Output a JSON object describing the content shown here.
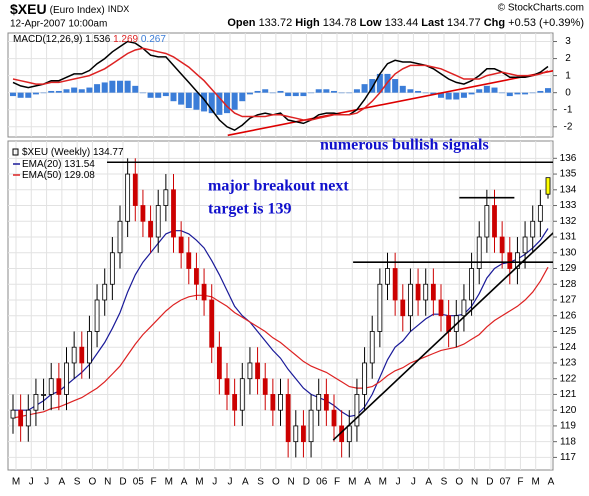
{
  "header": {
    "symbol": "$XEU",
    "name": "(Euro Index)",
    "exchange": "INDX",
    "date": "12-Apr-2007 10:00am",
    "quote_labels": [
      "Open",
      "High",
      "Low",
      "Last",
      "Chg"
    ],
    "change": "+0.53 (+0.39%)",
    "source": "© StockCharts.com"
  },
  "chart_data": [
    {
      "type": "macd",
      "name": "MACD(12,26,9)",
      "series": [
        {
          "color": "#000000",
          "values": [
            0.6,
            0.4,
            0.3,
            0.4,
            0.5,
            0.7,
            0.7,
            0.9,
            1.1,
            1.1,
            1.3,
            1.7,
            2.0,
            2.4,
            2.7,
            3.0,
            2.9,
            2.6,
            2.2,
            2.1,
            2.1,
            1.6,
            1.1,
            0.6,
            0.1,
            -0.4,
            -1.0,
            -1.6,
            -2.0,
            -2.2,
            -1.9,
            -1.5,
            -1.3,
            -1.2,
            -1.3,
            -1.2,
            -1.6,
            -1.7,
            -1.8,
            -1.6,
            -1.3,
            -1.2,
            -1.2,
            -1.3,
            -1.3,
            -1.0,
            -0.4,
            0.3,
            1.1,
            1.7,
            1.9,
            1.8,
            1.8,
            1.7,
            1.6,
            1.4,
            1.1,
            0.8,
            0.6,
            0.5,
            0.7,
            1.0,
            1.4,
            1.4,
            1.2,
            0.9,
            0.9,
            0.9,
            1.0,
            1.2,
            1.536
          ]
        },
        {
          "color": "#dd2222",
          "values": [
            0.8,
            0.7,
            0.6,
            0.5,
            0.5,
            0.6,
            0.6,
            0.7,
            0.8,
            0.9,
            1.0,
            1.2,
            1.4,
            1.7,
            2.0,
            2.3,
            2.5,
            2.6,
            2.5,
            2.4,
            2.3,
            2.1,
            1.8,
            1.5,
            1.1,
            0.7,
            0.2,
            -0.3,
            -0.8,
            -1.2,
            -1.4,
            -1.4,
            -1.4,
            -1.4,
            -1.3,
            -1.3,
            -1.4,
            -1.5,
            -1.6,
            -1.6,
            -1.5,
            -1.4,
            -1.3,
            -1.3,
            -1.3,
            -1.2,
            -0.9,
            -0.5,
            0.0,
            0.6,
            1.1,
            1.4,
            1.6,
            1.6,
            1.6,
            1.5,
            1.4,
            1.2,
            1.0,
            0.8,
            0.8,
            0.8,
            1.0,
            1.1,
            1.2,
            1.1,
            1.0,
            1.0,
            1.0,
            1.1,
            1.269
          ]
        },
        {
          "color": "#3b7dd8",
          "kind": "histogram",
          "values": [
            -0.2,
            -0.3,
            -0.3,
            -0.1,
            0,
            0.1,
            0.1,
            0.2,
            0.3,
            0.2,
            0.3,
            0.5,
            0.6,
            0.7,
            0.7,
            0.7,
            0.4,
            0,
            -0.3,
            -0.3,
            -0.2,
            -0.5,
            -0.7,
            -0.9,
            -1.0,
            -1.1,
            -1.2,
            -1.3,
            -1.2,
            -1.0,
            -0.5,
            -0.1,
            0.1,
            0.2,
            0,
            0.1,
            -0.2,
            -0.2,
            -0.2,
            0,
            0.2,
            0.2,
            0.1,
            0,
            0,
            0.2,
            0.5,
            0.8,
            1.1,
            1.1,
            0.8,
            0.4,
            0.2,
            0.1,
            0,
            -0.1,
            -0.3,
            -0.4,
            -0.4,
            -0.3,
            -0.1,
            0.2,
            0.4,
            0.3,
            0,
            -0.2,
            -0.1,
            -0.1,
            0,
            0.1,
            0.267
          ]
        }
      ],
      "trendlines": [
        {
          "x": [
            28.1,
            71.2
          ],
          "y": [
            -2.5,
            1.33
          ],
          "color": "#dd0000"
        }
      ],
      "ylim": [
        -2.6,
        3.5
      ],
      "yticks": [
        -2,
        -1,
        0,
        1,
        2,
        3
      ],
      "grid": true
    },
    {
      "type": "candlestick",
      "name": "$XEU (Weekly)",
      "open": [
        119.5,
        120,
        119,
        120,
        121,
        121,
        122,
        121,
        123,
        124,
        123,
        125,
        127,
        128,
        130,
        132,
        135,
        133,
        132,
        131,
        133,
        134,
        131,
        130,
        129,
        128,
        127,
        124,
        122,
        121,
        120,
        122,
        123,
        122,
        121,
        120,
        121,
        118,
        119,
        118,
        120,
        121,
        120,
        119,
        118,
        119,
        121,
        123,
        125,
        128,
        129,
        127,
        126,
        128,
        127,
        128,
        127,
        126,
        125,
        126,
        127,
        129,
        131,
        133,
        131,
        130,
        129,
        130,
        131,
        132,
        133.72
      ],
      "high": [
        121,
        121,
        121,
        122,
        122,
        123,
        123,
        124,
        125,
        125,
        126,
        128,
        129,
        131,
        133,
        136,
        136,
        134,
        133,
        134,
        135,
        135,
        132,
        131,
        130,
        129,
        128,
        125,
        123,
        122,
        123,
        124,
        124,
        123,
        122,
        122,
        122,
        120,
        120,
        121,
        122,
        122,
        121,
        120,
        120,
        122,
        124,
        126,
        129,
        130,
        130,
        128,
        129,
        129,
        129,
        129,
        128,
        127,
        127,
        128,
        130,
        132,
        134,
        134,
        132,
        131,
        131,
        132,
        133,
        134,
        134.78
      ],
      "low": [
        118.5,
        118,
        118,
        119,
        120,
        120,
        120,
        120,
        122,
        122,
        122,
        124,
        126,
        127,
        129,
        131,
        132,
        131,
        130,
        130,
        132,
        130,
        129,
        128,
        127,
        126,
        123,
        121,
        120,
        119,
        119,
        121,
        121,
        120,
        119,
        119,
        117,
        117,
        117,
        117,
        119,
        119,
        118,
        117,
        117,
        118,
        120,
        122,
        124,
        127,
        126,
        125,
        125,
        126,
        126,
        126,
        125,
        124,
        124,
        125,
        126,
        128,
        130,
        130,
        129,
        128,
        128,
        129,
        130,
        131,
        133.44
      ],
      "close": [
        120,
        119,
        120,
        121,
        121,
        122,
        121,
        123,
        124,
        123,
        125,
        127,
        128,
        130,
        132,
        135,
        133,
        132,
        131,
        133,
        134,
        131,
        130,
        129,
        128,
        127,
        124,
        122,
        121,
        120,
        122,
        123,
        122,
        121,
        120,
        121,
        118,
        119,
        118,
        120,
        121,
        120,
        119,
        118,
        119,
        121,
        123,
        125,
        128,
        129,
        127,
        126,
        128,
        127,
        128,
        127,
        126,
        125,
        126,
        127,
        129,
        131,
        133,
        131,
        130,
        129,
        130,
        131,
        132,
        133,
        134.77
      ],
      "up_color": "#000000",
      "down_color": "#cc0000",
      "last_bar_color": "#ffff00",
      "series": [
        {
          "name": "EMA(20)",
          "color": "#1a1a99",
          "values": [
            120,
            120,
            120,
            120.3,
            120.6,
            121,
            121.2,
            121.6,
            122,
            122.4,
            122.9,
            123.6,
            124.3,
            125.2,
            126.2,
            127.5,
            128.6,
            129.4,
            130,
            130.6,
            131.2,
            131.4,
            131.4,
            131.2,
            130.8,
            130.3,
            129.5,
            128.6,
            127.6,
            126.6,
            126,
            125.6,
            125,
            124.4,
            123.8,
            123.3,
            122.6,
            122,
            121.4,
            121,
            120.8,
            120.6,
            120.3,
            119.9,
            119.6,
            119.7,
            120.2,
            121,
            122.1,
            123.2,
            124,
            124.4,
            125,
            125.4,
            125.8,
            126.1,
            126.1,
            126,
            126,
            126.1,
            126.6,
            127.4,
            128.4,
            129,
            129.3,
            129.4,
            129.6,
            129.9,
            130.3,
            130.8,
            131.54
          ]
        },
        {
          "name": "EMA(50)",
          "color": "#dd2222",
          "values": [
            119.5,
            119.6,
            119.7,
            119.8,
            119.9,
            120.1,
            120.2,
            120.4,
            120.6,
            120.8,
            121.1,
            121.4,
            121.8,
            122.3,
            122.8,
            123.5,
            124.2,
            124.8,
            125.3,
            125.8,
            126.3,
            126.7,
            127,
            127.2,
            127.3,
            127.3,
            127.2,
            126.9,
            126.6,
            126.2,
            125.9,
            125.6,
            125.3,
            125,
            124.6,
            124.3,
            123.9,
            123.5,
            123.1,
            122.8,
            122.6,
            122.4,
            122.1,
            121.8,
            121.5,
            121.4,
            121.4,
            121.5,
            121.8,
            122.2,
            122.5,
            122.7,
            123,
            123.2,
            123.4,
            123.6,
            123.8,
            123.9,
            124,
            124.2,
            124.5,
            124.8,
            125.3,
            125.7,
            126,
            126.3,
            126.6,
            127,
            127.5,
            128.2,
            129.08
          ]
        }
      ],
      "x_labels": [
        "M",
        "J",
        "J",
        "A",
        "S",
        "O",
        "N",
        "D",
        "05",
        "F",
        "M",
        "A",
        "M",
        "J",
        "J",
        "A",
        "S",
        "O",
        "N",
        "D",
        "06",
        "F",
        "M",
        "A",
        "M",
        "J",
        "J",
        "A",
        "S",
        "O",
        "N",
        "D",
        "07",
        "F",
        "M",
        "A"
      ],
      "annotations": [
        "numerous bullish signals",
        "major breakout next",
        "target is 139"
      ],
      "trendlines": [
        {
          "x": [
            12.3,
            71.5
          ],
          "y": [
            135.75,
            135.75
          ],
          "color": "#000000"
        },
        {
          "x": [
            44.5,
            71.5
          ],
          "y": [
            129.4,
            129.4
          ],
          "color": "#000000"
        },
        {
          "x": [
            58.4,
            65.6
          ],
          "y": [
            133.5,
            133.5
          ],
          "color": "#000000"
        },
        {
          "x": [
            41.9,
            71.2
          ],
          "y": [
            118.1,
            131.5
          ],
          "color": "#000000"
        }
      ],
      "ylim": [
        116.2,
        137.1
      ],
      "yticks": [
        117,
        118,
        119,
        120,
        121,
        122,
        123,
        124,
        125,
        126,
        127,
        128,
        129,
        130,
        131,
        132,
        133,
        134,
        135,
        136
      ],
      "grid": true
    }
  ]
}
